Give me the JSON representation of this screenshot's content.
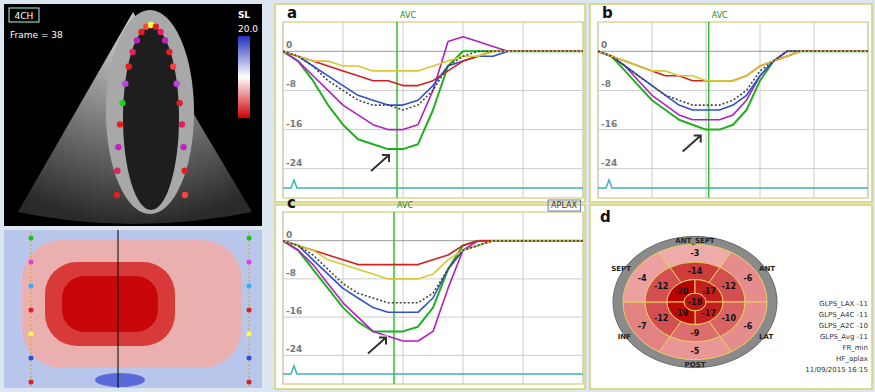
{
  "echo": {
    "view": "4CH",
    "frame": "Frame = 38",
    "colorbar": {
      "title": "SL",
      "range": [
        -20,
        20
      ],
      "ticks": [
        {
          "value": 20,
          "label": "20.0"
        }
      ]
    }
  },
  "chart_data": [
    {
      "type": "line",
      "title": "a",
      "x": [
        0,
        5,
        10,
        15,
        20,
        25,
        30,
        35,
        40,
        45,
        50,
        55,
        60,
        65,
        70,
        75,
        80,
        85,
        90,
        95,
        100
      ],
      "xlim": [
        0,
        100
      ],
      "ylim": [
        -30,
        6
      ],
      "xticks": [
        0,
        20,
        40,
        60,
        80,
        100
      ],
      "yticks": [
        -24,
        -16,
        -8,
        0
      ],
      "grid": true,
      "tick_labels": "y",
      "annotations": [
        {
          "text": "AVC",
          "x": 38
        }
      ],
      "series": [
        {
          "color": "#1fb01f",
          "line_style": "solid",
          "values": [
            0,
            -2,
            -6,
            -11,
            -15,
            -18,
            -19,
            -20,
            -20,
            -19,
            -12,
            -3,
            0,
            0,
            0,
            0,
            0,
            0,
            0,
            0,
            0
          ]
        },
        {
          "color": "#b020c0",
          "line_style": "solid",
          "values": [
            0,
            -2,
            -5,
            -8,
            -11,
            -13,
            -15,
            -16,
            -16,
            -15,
            -8,
            2,
            3,
            2,
            1,
            0,
            0,
            0,
            0,
            0,
            0
          ]
        },
        {
          "color": "#3050d0",
          "line_style": "solid",
          "values": [
            0,
            -1,
            -3,
            -5,
            -7,
            -9,
            -10,
            -11,
            -11,
            -10,
            -7,
            -3,
            -2,
            -1,
            -1,
            0,
            0,
            0,
            0,
            0,
            0
          ]
        },
        {
          "color": "#d02020",
          "line_style": "solid",
          "values": [
            0,
            -1,
            -2,
            -3,
            -4,
            -5,
            -6,
            -6,
            -7,
            -7,
            -6,
            -4,
            -2,
            -1,
            0,
            0,
            0,
            0,
            0,
            0,
            0
          ]
        },
        {
          "color": "#d8c830",
          "line_style": "solid",
          "values": [
            0,
            -1,
            -2,
            -2,
            -3,
            -3,
            -4,
            -4,
            -4,
            -4,
            -3,
            -2,
            -1,
            -1,
            0,
            0,
            0,
            0,
            0,
            0,
            0
          ]
        },
        {
          "color": "#444444",
          "line_style": "dotted",
          "values": [
            0,
            -1,
            -3,
            -6,
            -8,
            -10,
            -11,
            -11,
            -12,
            -11,
            -8,
            -3,
            -1,
            0,
            0,
            0,
            0,
            0,
            0,
            0,
            0
          ]
        }
      ]
    },
    {
      "type": "line",
      "title": "b",
      "x": [
        0,
        5,
        10,
        15,
        20,
        25,
        30,
        35,
        40,
        45,
        50,
        55,
        60,
        65,
        70,
        75,
        80,
        85,
        90,
        95,
        100
      ],
      "xlim": [
        0,
        100
      ],
      "ylim": [
        -30,
        6
      ],
      "xticks": [
        0,
        20,
        40,
        60,
        80,
        100
      ],
      "yticks": [
        -24,
        -16,
        -8,
        0
      ],
      "grid": true,
      "tick_labels": "y",
      "annotations": [
        {
          "text": "AVC",
          "x": 41
        }
      ],
      "series": [
        {
          "color": "#1fb01f",
          "line_style": "solid",
          "values": [
            0,
            -1,
            -4,
            -7,
            -10,
            -12,
            -14,
            -15,
            -16,
            -16,
            -15,
            -12,
            -6,
            -2,
            0,
            0,
            0,
            0,
            0,
            0,
            0
          ]
        },
        {
          "color": "#b020c0",
          "line_style": "solid",
          "values": [
            0,
            -1,
            -3,
            -6,
            -9,
            -11,
            -13,
            -14,
            -14,
            -14,
            -13,
            -10,
            -5,
            -2,
            0,
            0,
            0,
            0,
            0,
            0,
            0
          ]
        },
        {
          "color": "#3050d0",
          "line_style": "solid",
          "values": [
            0,
            -1,
            -3,
            -5,
            -7,
            -9,
            -11,
            -12,
            -12,
            -12,
            -11,
            -9,
            -5,
            -2,
            -1,
            0,
            0,
            0,
            0,
            0,
            0
          ]
        },
        {
          "color": "#d02020",
          "line_style": "solid",
          "values": [
            0,
            -1,
            -2,
            -3,
            -4,
            -5,
            -5,
            -6,
            -6,
            -6,
            -6,
            -5,
            -3,
            -2,
            -1,
            0,
            0,
            0,
            0,
            0,
            0
          ]
        },
        {
          "color": "#d8c830",
          "line_style": "solid",
          "values": [
            0,
            -1,
            -2,
            -3,
            -4,
            -4,
            -5,
            -5,
            -6,
            -6,
            -6,
            -5,
            -3,
            -2,
            -1,
            0,
            0,
            0,
            0,
            0,
            0
          ]
        },
        {
          "color": "#444444",
          "line_style": "dotted",
          "values": [
            0,
            -1,
            -3,
            -5,
            -7,
            -9,
            -10,
            -11,
            -11,
            -11,
            -10,
            -8,
            -4,
            -2,
            0,
            0,
            0,
            0,
            0,
            0,
            0
          ]
        }
      ]
    },
    {
      "type": "line",
      "title": "c",
      "subtitle": "APLAX",
      "x": [
        0,
        5,
        10,
        15,
        20,
        25,
        30,
        35,
        40,
        45,
        50,
        55,
        60,
        65,
        70,
        75,
        80,
        85,
        90,
        95,
        100
      ],
      "xlim": [
        0,
        100
      ],
      "ylim": [
        -30,
        6
      ],
      "xticks": [
        0,
        20,
        40,
        60,
        80,
        100
      ],
      "yticks": [
        -24,
        -16,
        -8,
        0
      ],
      "grid": true,
      "tick_labels": "y",
      "annotations": [
        {
          "text": "AVC",
          "x": 37
        }
      ],
      "series": [
        {
          "color": "#1fb01f",
          "line_style": "solid",
          "values": [
            0,
            -2,
            -6,
            -10,
            -14,
            -17,
            -19,
            -19,
            -19,
            -18,
            -14,
            -6,
            -1,
            0,
            0,
            0,
            0,
            0,
            0,
            0,
            0
          ]
        },
        {
          "color": "#b020c0",
          "line_style": "solid",
          "values": [
            0,
            -2,
            -5,
            -9,
            -13,
            -16,
            -19,
            -20,
            -21,
            -21,
            -19,
            -10,
            -2,
            0,
            0,
            0,
            0,
            0,
            0,
            0,
            0
          ]
        },
        {
          "color": "#3050d0",
          "line_style": "solid",
          "values": [
            0,
            -1,
            -4,
            -7,
            -10,
            -12,
            -14,
            -15,
            -15,
            -15,
            -12,
            -6,
            -2,
            -1,
            0,
            0,
            0,
            0,
            0,
            0,
            0
          ]
        },
        {
          "color": "#d02020",
          "line_style": "solid",
          "values": [
            0,
            -1,
            -2,
            -3,
            -4,
            -5,
            -5,
            -5,
            -5,
            -5,
            -4,
            -3,
            -1,
            0,
            0,
            0,
            0,
            0,
            0,
            0,
            0
          ]
        },
        {
          "color": "#d8c830",
          "line_style": "solid",
          "values": [
            0,
            -1,
            -2,
            -4,
            -5,
            -6,
            -7,
            -8,
            -8,
            -8,
            -7,
            -4,
            -2,
            -1,
            0,
            0,
            0,
            0,
            0,
            0,
            0
          ]
        },
        {
          "color": "#444444",
          "line_style": "dotted",
          "values": [
            0,
            -1,
            -3,
            -6,
            -9,
            -11,
            -12,
            -13,
            -13,
            -13,
            -11,
            -6,
            -2,
            -1,
            0,
            0,
            0,
            0,
            0,
            0,
            0
          ]
        }
      ]
    }
  ],
  "bullseye": {
    "title": "d",
    "labels": [
      "ANT_SEPT",
      "ANT",
      "LAT",
      "POST",
      "INF",
      "SEPT"
    ],
    "basal": [
      -3,
      -6,
      -6,
      -5,
      -7,
      -4
    ],
    "mid": [
      -14,
      -12,
      -10,
      -9,
      -12,
      -12
    ],
    "apical": [
      -20,
      -17,
      -17,
      -19
    ],
    "apex": -18,
    "side_text": [
      "GLPS_LAX -11",
      "GLPS_A4C -11",
      "GLPS_A2C -10",
      "GLPS_Avg -11",
      "FR_min",
      "HF_aplax",
      "11/09/2015 16:15"
    ]
  }
}
